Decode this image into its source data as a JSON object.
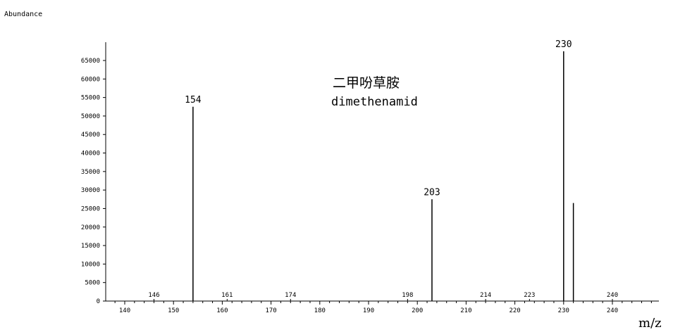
{
  "chart_data": {
    "type": "bar",
    "ylabel": "Abundance",
    "xlabel": "m/z",
    "compound_name_cn": "二甲吩草胺",
    "compound_name_en": "dimethenamid",
    "xlim": [
      136,
      248
    ],
    "ylim": [
      0,
      68000
    ],
    "x_ticks": [
      140,
      150,
      160,
      170,
      180,
      190,
      200,
      210,
      220,
      230,
      240
    ],
    "y_ticks": [
      0,
      5000,
      10000,
      15000,
      20000,
      25000,
      30000,
      35000,
      40000,
      45000,
      50000,
      55000,
      60000,
      65000
    ],
    "peaks": [
      {
        "mz": 154,
        "abundance": 52500,
        "label": "154"
      },
      {
        "mz": 203,
        "abundance": 27500,
        "label": "203"
      },
      {
        "mz": 230,
        "abundance": 67500,
        "label": "230"
      },
      {
        "mz": 232,
        "abundance": 26500,
        "label": ""
      }
    ],
    "minor_labels": [
      {
        "mz": 146,
        "label": "146"
      },
      {
        "mz": 161,
        "label": "161"
      },
      {
        "mz": 174,
        "label": "174"
      },
      {
        "mz": 198,
        "label": "198"
      },
      {
        "mz": 214,
        "label": "214"
      },
      {
        "mz": 223,
        "label": "223"
      },
      {
        "mz": 240,
        "label": "240"
      }
    ],
    "grid": false
  }
}
